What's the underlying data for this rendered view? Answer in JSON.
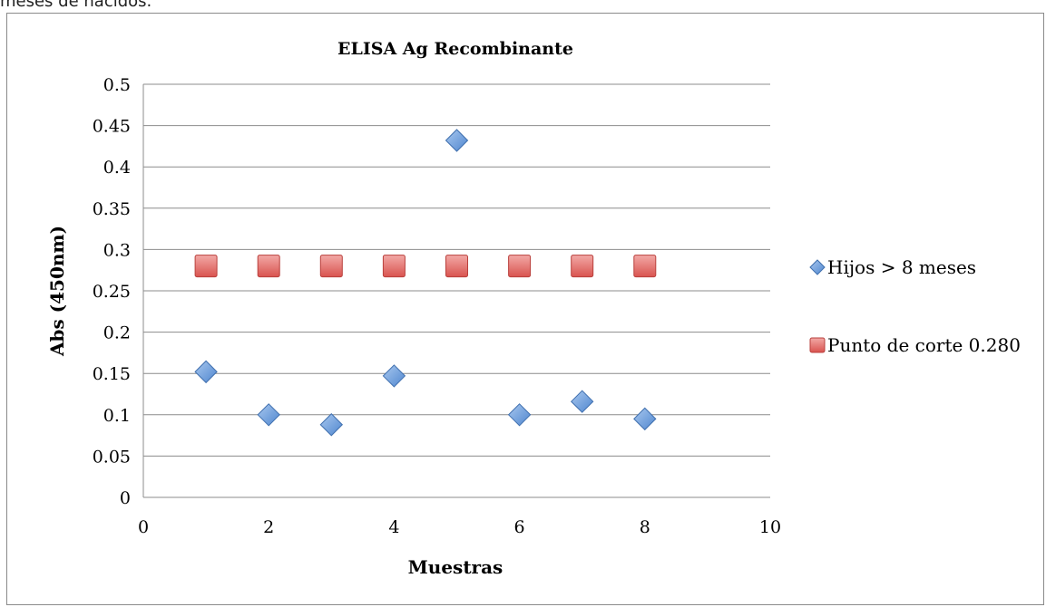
{
  "header_fragment": "meses de nacidos.",
  "chart_data": {
    "type": "scatter",
    "title": "ELISA Ag Recombinante",
    "xlabel": "Muestras",
    "ylabel": "Abs (450nm)",
    "xlim": [
      0,
      10
    ],
    "ylim": [
      0,
      0.5
    ],
    "x_ticks": [
      "0",
      "2",
      "4",
      "6",
      "8",
      "10"
    ],
    "y_ticks": [
      "0",
      "0.05",
      "0.1",
      "0.15",
      "0.2",
      "0.25",
      "0.3",
      "0.35",
      "0.4",
      "0.45",
      "0.5"
    ],
    "grid": "horizontal",
    "legend_position": "right",
    "series": [
      {
        "name": "Hijos > 8 meses",
        "marker": "diamond",
        "color": "#6fa0dc",
        "x": [
          1,
          2,
          3,
          4,
          5,
          6,
          7,
          8
        ],
        "y": [
          0.152,
          0.1,
          0.088,
          0.147,
          0.432,
          0.1,
          0.116,
          0.095
        ]
      },
      {
        "name": "Punto de corte 0.280",
        "marker": "square",
        "color": "#e06c6a",
        "x": [
          1,
          2,
          3,
          4,
          5,
          6,
          7,
          8
        ],
        "y": [
          0.28,
          0.28,
          0.28,
          0.28,
          0.28,
          0.28,
          0.28,
          0.28
        ]
      }
    ]
  }
}
